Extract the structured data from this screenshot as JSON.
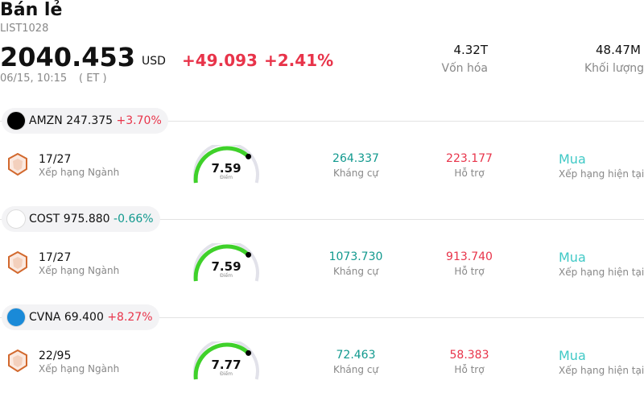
{
  "header": {
    "title": "Bán lẻ",
    "code": "LIST1028",
    "price": "2040.453",
    "currency": "USD",
    "change": "+49.093",
    "change_pct": "+2.41%",
    "time": "06/15, 10:15",
    "timezone": "( ET )",
    "stats": [
      {
        "value": "4.32T",
        "label": "Vốn hóa"
      },
      {
        "value": "48.47M",
        "label": "Khối lượng"
      }
    ]
  },
  "stocks": [
    {
      "ticker": "AMZN",
      "price": "247.375",
      "change": "+3.70%",
      "rank": "17/27",
      "rank_label": "Xếp hạng Ngành",
      "score": "7.59",
      "score_label": "Điểm",
      "resistance": "264.337",
      "resistance_label": "Kháng cự",
      "support": "223.177",
      "support_label": "Hỗ trợ",
      "rating": "Mua",
      "rating_label": "Xếp hạng hiện tại"
    },
    {
      "ticker": "COST",
      "price": "975.880",
      "change": "-0.66%",
      "rank": "17/27",
      "rank_label": "Xếp hạng Ngành",
      "score": "7.59",
      "score_label": "Điểm",
      "resistance": "1073.730",
      "resistance_label": "Kháng cự",
      "support": "913.740",
      "support_label": "Hỗ trợ",
      "rating": "Mua",
      "rating_label": "Xếp hạng hiện tại"
    },
    {
      "ticker": "CVNA",
      "price": "69.400",
      "change": "+8.27%",
      "rank": "22/95",
      "rank_label": "Xếp hạng Ngành",
      "score": "7.77",
      "score_label": "Điểm",
      "resistance": "72.463",
      "resistance_label": "Kháng cự",
      "support": "58.383",
      "support_label": "Hỗ trợ",
      "rating": "Mua",
      "rating_label": "Xếp hạng hiện tại"
    }
  ]
}
